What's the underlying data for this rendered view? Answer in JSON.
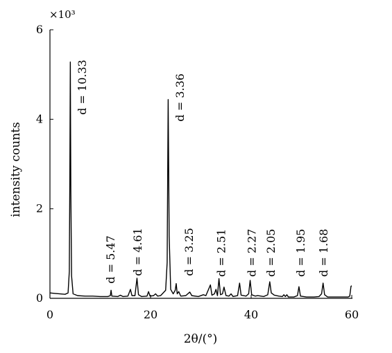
{
  "chart_data": {
    "type": "line",
    "title": "",
    "xlabel": "2θ/(°)",
    "ylabel": "intensity counts",
    "y_multiplier": "×10³",
    "xlim": [
      0,
      60
    ],
    "ylim": [
      0,
      6
    ],
    "xticks": [
      0,
      20,
      40,
      60
    ],
    "yticks": [
      0,
      2,
      4,
      6
    ],
    "grid": false,
    "legend": "none",
    "series": [
      {
        "points": [
          [
            0.0,
            0.12
          ],
          [
            1.0,
            0.11
          ],
          [
            2.0,
            0.1
          ],
          [
            3.0,
            0.09
          ],
          [
            3.6,
            0.12
          ],
          [
            3.85,
            0.6
          ],
          [
            3.95,
            2.6
          ],
          [
            4.05,
            5.28
          ],
          [
            4.15,
            2.4
          ],
          [
            4.3,
            0.5
          ],
          [
            4.6,
            0.1
          ],
          [
            5.5,
            0.06
          ],
          [
            7.0,
            0.05
          ],
          [
            8.5,
            0.05
          ],
          [
            10.0,
            0.04
          ],
          [
            11.5,
            0.04
          ],
          [
            12.0,
            0.06
          ],
          [
            12.15,
            0.18
          ],
          [
            12.3,
            0.05
          ],
          [
            13.5,
            0.04
          ],
          [
            14.0,
            0.07
          ],
          [
            14.5,
            0.04
          ],
          [
            15.5,
            0.05
          ],
          [
            16.0,
            0.2
          ],
          [
            16.3,
            0.06
          ],
          [
            16.9,
            0.06
          ],
          [
            17.3,
            0.45
          ],
          [
            17.6,
            0.08
          ],
          [
            18.2,
            0.04
          ],
          [
            19.3,
            0.05
          ],
          [
            19.6,
            0.15
          ],
          [
            19.9,
            0.05
          ],
          [
            20.6,
            0.06
          ],
          [
            21.0,
            0.1
          ],
          [
            21.4,
            0.05
          ],
          [
            22.0,
            0.06
          ],
          [
            22.5,
            0.12
          ],
          [
            23.0,
            0.18
          ],
          [
            23.3,
            0.8
          ],
          [
            23.5,
            4.44
          ],
          [
            23.7,
            1.4
          ],
          [
            24.0,
            0.2
          ],
          [
            24.5,
            0.1
          ],
          [
            24.9,
            0.18
          ],
          [
            25.1,
            0.33
          ],
          [
            25.3,
            0.1
          ],
          [
            25.6,
            0.15
          ],
          [
            26.0,
            0.05
          ],
          [
            27.0,
            0.06
          ],
          [
            27.8,
            0.14
          ],
          [
            28.2,
            0.06
          ],
          [
            29.5,
            0.04
          ],
          [
            30.5,
            0.08
          ],
          [
            31.0,
            0.06
          ],
          [
            31.9,
            0.3
          ],
          [
            32.2,
            0.07
          ],
          [
            32.7,
            0.1
          ],
          [
            33.0,
            0.2
          ],
          [
            33.3,
            0.06
          ],
          [
            33.6,
            0.44
          ],
          [
            33.9,
            0.08
          ],
          [
            34.3,
            0.1
          ],
          [
            34.6,
            0.25
          ],
          [
            35.0,
            0.06
          ],
          [
            35.6,
            0.05
          ],
          [
            36.0,
            0.1
          ],
          [
            36.4,
            0.04
          ],
          [
            37.3,
            0.06
          ],
          [
            37.7,
            0.34
          ],
          [
            38.0,
            0.07
          ],
          [
            39.0,
            0.05
          ],
          [
            39.5,
            0.1
          ],
          [
            39.8,
            0.4
          ],
          [
            40.1,
            0.08
          ],
          [
            40.8,
            0.05
          ],
          [
            41.3,
            0.06
          ],
          [
            42.5,
            0.04
          ],
          [
            43.3,
            0.08
          ],
          [
            43.7,
            0.37
          ],
          [
            44.0,
            0.12
          ],
          [
            44.6,
            0.07
          ],
          [
            45.5,
            0.05
          ],
          [
            46.2,
            0.04
          ],
          [
            46.5,
            0.08
          ],
          [
            46.8,
            0.04
          ],
          [
            47.1,
            0.08
          ],
          [
            47.4,
            0.03
          ],
          [
            48.5,
            0.03
          ],
          [
            49.2,
            0.06
          ],
          [
            49.5,
            0.26
          ],
          [
            49.8,
            0.05
          ],
          [
            51.0,
            0.03
          ],
          [
            52.5,
            0.03
          ],
          [
            53.5,
            0.04
          ],
          [
            54.0,
            0.1
          ],
          [
            54.3,
            0.34
          ],
          [
            54.6,
            0.08
          ],
          [
            55.2,
            0.03
          ],
          [
            57.0,
            0.03
          ],
          [
            58.5,
            0.03
          ],
          [
            59.3,
            0.03
          ],
          [
            59.6,
            0.05
          ],
          [
            59.85,
            0.27
          ],
          [
            60.0,
            0.28
          ]
        ]
      }
    ],
    "annotations": [
      {
        "text": "d = 10.33",
        "x": 7.2,
        "y": 4.1
      },
      {
        "text": "d = 5.47",
        "x": 12.8,
        "y": 0.33
      },
      {
        "text": "d = 4.61",
        "x": 18.2,
        "y": 0.5
      },
      {
        "text": "d = 3.36",
        "x": 26.6,
        "y": 3.95
      },
      {
        "text": "d = 3.25",
        "x": 28.4,
        "y": 0.5
      },
      {
        "text": "d = 2.51",
        "x": 34.8,
        "y": 0.48
      },
      {
        "text": "d = 2.27",
        "x": 40.9,
        "y": 0.48
      },
      {
        "text": "d = 2.05",
        "x": 44.7,
        "y": 0.48
      },
      {
        "text": "d = 1.95",
        "x": 50.6,
        "y": 0.48
      },
      {
        "text": "d = 1.68",
        "x": 55.2,
        "y": 0.48
      }
    ]
  }
}
